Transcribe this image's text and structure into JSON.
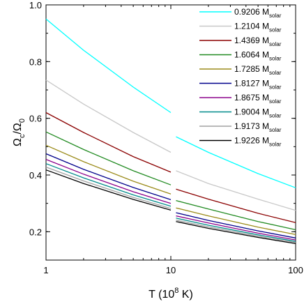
{
  "chart_data": {
    "type": "line",
    "xscale": "log",
    "xlim": [
      1,
      100
    ],
    "ylim": [
      0.1,
      1.0
    ],
    "xticks": [
      "1",
      "10",
      "100"
    ],
    "yticks": [
      "0.2",
      "0.4",
      "0.6",
      "0.8",
      "1.0"
    ],
    "xlabel": {
      "main": "T (10",
      "sup": "8",
      "end": " K)"
    },
    "ylabel": {
      "omega": "Ω",
      "sub_c": "c",
      "slash": "/",
      "omega2": "Ω",
      "sub_0": "0"
    },
    "legend_position": "top-right",
    "legend_unit": "M",
    "legend_unit_sub": "solar",
    "gap_between": [
      10,
      11
    ],
    "grid": false,
    "series": [
      {
        "name": "0.9206",
        "color": "#00ffff",
        "points": [
          [
            1,
            0.95
          ],
          [
            2,
            0.84
          ],
          [
            5,
            0.71
          ],
          [
            10,
            0.62
          ],
          [
            11,
            0.535
          ],
          [
            20,
            0.48
          ],
          [
            50,
            0.405
          ],
          [
            100,
            0.355
          ]
        ]
      },
      {
        "name": "1.2104",
        "color": "#c8c8c8",
        "points": [
          [
            1,
            0.735
          ],
          [
            2,
            0.65
          ],
          [
            5,
            0.55
          ],
          [
            10,
            0.48
          ],
          [
            11,
            0.415
          ],
          [
            20,
            0.37
          ],
          [
            50,
            0.315
          ],
          [
            100,
            0.275
          ]
        ]
      },
      {
        "name": "1.4369",
        "color": "#8b0000",
        "points": [
          [
            1,
            0.62
          ],
          [
            2,
            0.55
          ],
          [
            5,
            0.465
          ],
          [
            10,
            0.41
          ],
          [
            11,
            0.35
          ],
          [
            20,
            0.315
          ],
          [
            50,
            0.265
          ],
          [
            100,
            0.232
          ]
        ]
      },
      {
        "name": "1.6064",
        "color": "#228b22",
        "points": [
          [
            1,
            0.552
          ],
          [
            2,
            0.49
          ],
          [
            5,
            0.415
          ],
          [
            10,
            0.365
          ],
          [
            11,
            0.31
          ],
          [
            20,
            0.28
          ],
          [
            50,
            0.236
          ],
          [
            100,
            0.207
          ]
        ]
      },
      {
        "name": "1.7285",
        "color": "#9b8b1a",
        "points": [
          [
            1,
            0.505
          ],
          [
            2,
            0.447
          ],
          [
            5,
            0.378
          ],
          [
            10,
            0.333
          ],
          [
            11,
            0.284
          ],
          [
            20,
            0.256
          ],
          [
            50,
            0.216
          ],
          [
            100,
            0.19
          ]
        ]
      },
      {
        "name": "1.8127",
        "color": "#00008b",
        "points": [
          [
            1,
            0.475
          ],
          [
            2,
            0.42
          ],
          [
            5,
            0.356
          ],
          [
            10,
            0.313
          ],
          [
            11,
            0.267
          ],
          [
            20,
            0.24
          ],
          [
            50,
            0.203
          ],
          [
            100,
            0.178
          ]
        ]
      },
      {
        "name": "1.8675",
        "color": "#8b008b",
        "points": [
          [
            1,
            0.455
          ],
          [
            2,
            0.403
          ],
          [
            5,
            0.341
          ],
          [
            10,
            0.3
          ],
          [
            11,
            0.256
          ],
          [
            20,
            0.231
          ],
          [
            50,
            0.195
          ],
          [
            100,
            0.171
          ]
        ]
      },
      {
        "name": "1.9004",
        "color": "#008b8b",
        "points": [
          [
            1,
            0.44
          ],
          [
            2,
            0.39
          ],
          [
            5,
            0.33
          ],
          [
            10,
            0.29
          ],
          [
            11,
            0.248
          ],
          [
            20,
            0.223
          ],
          [
            50,
            0.189
          ],
          [
            100,
            0.166
          ]
        ]
      },
      {
        "name": "1.9173",
        "color": "#a0a0a0",
        "points": [
          [
            1,
            0.428
          ],
          [
            2,
            0.379
          ],
          [
            5,
            0.321
          ],
          [
            10,
            0.282
          ],
          [
            11,
            0.241
          ],
          [
            20,
            0.217
          ],
          [
            50,
            0.184
          ],
          [
            100,
            0.162
          ]
        ]
      },
      {
        "name": "1.9226",
        "color": "#000000",
        "points": [
          [
            1,
            0.418
          ],
          [
            2,
            0.37
          ],
          [
            5,
            0.314
          ],
          [
            10,
            0.276
          ],
          [
            11,
            0.236
          ],
          [
            20,
            0.212
          ],
          [
            50,
            0.18
          ],
          [
            100,
            0.158
          ]
        ]
      }
    ]
  }
}
